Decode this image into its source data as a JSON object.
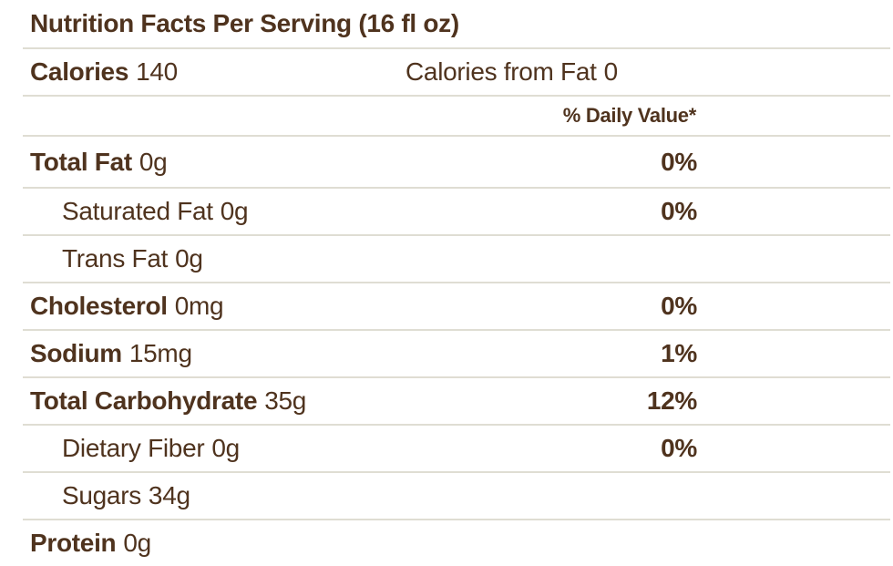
{
  "colors": {
    "text": "#4f331e",
    "divider": "#dfddd3",
    "background": "#ffffff"
  },
  "title": "Nutrition Facts Per Serving (16 fl oz)",
  "calories": {
    "label": "Calories",
    "value": "140",
    "from_fat_label": "Calories from Fat",
    "from_fat_value": "0"
  },
  "daily_value_header": "% Daily Value*",
  "rows": [
    {
      "name": "Total Fat",
      "amount": "0g",
      "dv": "0%"
    },
    {
      "name": "Saturated Fat",
      "amount": "0g",
      "dv": "0%"
    },
    {
      "name": "Trans Fat",
      "amount": "0g",
      "dv": ""
    },
    {
      "name": "Cholesterol",
      "amount": "0mg",
      "dv": "0%"
    },
    {
      "name": "Sodium",
      "amount": "15mg",
      "dv": "1%"
    },
    {
      "name": "Total Carbohydrate",
      "amount": "35g",
      "dv": "12%"
    },
    {
      "name": "Dietary Fiber",
      "amount": "0g",
      "dv": "0%"
    },
    {
      "name": "Sugars",
      "amount": "34g",
      "dv": ""
    },
    {
      "name": "Protein",
      "amount": "0g",
      "dv": ""
    }
  ]
}
